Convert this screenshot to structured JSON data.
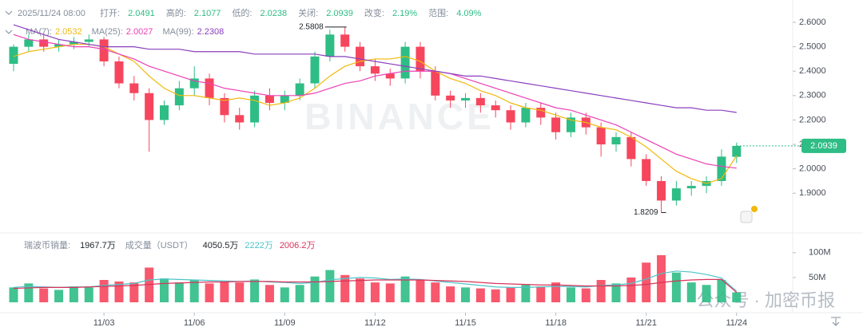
{
  "chart_data": {
    "type": "candlestick",
    "datetime": "2025/11/24 08:00",
    "stats": [
      {
        "label": "打开:",
        "value": "2.0491"
      },
      {
        "label": "高的:",
        "value": "2.1077"
      },
      {
        "label": "低的:",
        "value": "2.0238"
      },
      {
        "label": "关闭:",
        "value": "2.0939"
      },
      {
        "label": "改变:",
        "value": "2.19%"
      },
      {
        "label": "范围:",
        "value": "4.09%"
      }
    ],
    "up_color": "#2ebd85",
    "down_color": "#f6465d",
    "categories": [
      null,
      null,
      null,
      null,
      null,
      null,
      "11/03",
      null,
      null,
      null,
      null,
      null,
      "11/06",
      null,
      null,
      null,
      null,
      null,
      "11/09",
      null,
      null,
      null,
      null,
      null,
      "11/12",
      null,
      null,
      null,
      null,
      null,
      "11/15",
      null,
      null,
      null,
      null,
      null,
      "11/18",
      null,
      null,
      null,
      null,
      null,
      "11/21",
      null,
      null,
      null,
      null,
      null,
      "11/24"
    ],
    "open": [
      2.43,
      2.5,
      2.53,
      2.5,
      2.51,
      2.52,
      2.53,
      2.44,
      2.35,
      2.31,
      2.2,
      2.26,
      2.33,
      2.37,
      2.29,
      2.22,
      2.19,
      2.3,
      2.27,
      2.3,
      2.35,
      2.46,
      2.55,
      2.5,
      2.42,
      2.39,
      2.37,
      2.5,
      2.4,
      2.3,
      2.28,
      2.29,
      2.26,
      2.24,
      2.19,
      2.25,
      2.21,
      2.15,
      2.21,
      2.17,
      2.1,
      2.13,
      2.04,
      1.95,
      1.87,
      1.92,
      1.93,
      1.95,
      2.0491
    ],
    "high": [
      2.51,
      2.55,
      2.55,
      2.53,
      2.54,
      2.55,
      2.54,
      2.46,
      2.38,
      2.33,
      2.28,
      2.36,
      2.42,
      2.39,
      2.31,
      2.25,
      2.32,
      2.33,
      2.32,
      2.37,
      2.48,
      2.57,
      2.5808,
      2.52,
      2.45,
      2.41,
      2.52,
      2.52,
      2.42,
      2.32,
      2.31,
      2.31,
      2.28,
      2.26,
      2.27,
      2.27,
      2.23,
      2.23,
      2.23,
      2.19,
      2.15,
      2.15,
      2.06,
      1.97,
      1.95,
      1.95,
      1.97,
      2.08,
      2.1077
    ],
    "low": [
      2.4,
      2.48,
      2.48,
      2.48,
      2.49,
      2.5,
      2.42,
      2.33,
      2.28,
      2.07,
      2.18,
      2.24,
      2.3,
      2.26,
      2.19,
      2.16,
      2.17,
      2.24,
      2.24,
      2.28,
      2.33,
      2.44,
      2.48,
      2.4,
      2.36,
      2.34,
      2.35,
      2.37,
      2.28,
      2.25,
      2.25,
      2.23,
      2.21,
      2.16,
      2.17,
      2.18,
      2.12,
      2.13,
      2.14,
      2.05,
      2.07,
      2.01,
      1.93,
      1.8209,
      1.85,
      1.89,
      1.9,
      1.93,
      2.0238
    ],
    "close": [
      2.5,
      2.53,
      2.5,
      2.51,
      2.52,
      2.53,
      2.44,
      2.35,
      2.31,
      2.2,
      2.26,
      2.33,
      2.37,
      2.29,
      2.22,
      2.19,
      2.3,
      2.27,
      2.3,
      2.35,
      2.46,
      2.55,
      2.5,
      2.42,
      2.39,
      2.37,
      2.5,
      2.4,
      2.3,
      2.28,
      2.29,
      2.26,
      2.24,
      2.19,
      2.25,
      2.21,
      2.15,
      2.21,
      2.17,
      2.1,
      2.13,
      2.04,
      1.95,
      1.87,
      1.92,
      1.93,
      1.95,
      2.05,
      2.0939
    ],
    "ylim": [
      1.744,
      2.6915
    ],
    "yticks": [
      {
        "value": 2.6,
        "label": "2.6000"
      },
      {
        "value": 2.5,
        "label": "2.5000"
      },
      {
        "value": 2.4,
        "label": "2.4000"
      },
      {
        "value": 2.3,
        "label": "2.3000"
      },
      {
        "value": 2.2,
        "label": "2.2000"
      },
      {
        "value": 2.1,
        "label": "2.1000"
      },
      {
        "value": 2.0,
        "label": "2.0000"
      },
      {
        "value": 1.9,
        "label": "1.9000"
      }
    ],
    "series": [
      {
        "name": "MA(7):",
        "color": "#f0b90b",
        "values": [
          2.46,
          2.48,
          2.49,
          2.5,
          2.51,
          2.51,
          2.5,
          2.47,
          2.44,
          2.38,
          2.33,
          2.3,
          2.3,
          2.29,
          2.28,
          2.29,
          2.28,
          2.26,
          2.27,
          2.29,
          2.33,
          2.38,
          2.42,
          2.44,
          2.45,
          2.45,
          2.46,
          2.44,
          2.4,
          2.37,
          2.35,
          2.32,
          2.3,
          2.27,
          2.25,
          2.24,
          2.22,
          2.2,
          2.19,
          2.17,
          2.16,
          2.13,
          2.09,
          2.04,
          1.99,
          1.96,
          1.94,
          1.96,
          2.0532
        ]
      },
      {
        "name": "MA(25):",
        "color": "#eb40b5",
        "values": [
          2.55,
          2.53,
          2.52,
          2.51,
          2.5,
          2.5,
          2.49,
          2.47,
          2.45,
          2.42,
          2.4,
          2.38,
          2.36,
          2.35,
          2.33,
          2.32,
          2.31,
          2.3,
          2.3,
          2.3,
          2.31,
          2.33,
          2.35,
          2.36,
          2.38,
          2.39,
          2.4,
          2.4,
          2.4,
          2.39,
          2.37,
          2.35,
          2.33,
          2.31,
          2.29,
          2.27,
          2.25,
          2.24,
          2.22,
          2.2,
          2.18,
          2.15,
          2.12,
          2.09,
          2.06,
          2.04,
          2.02,
          2.01,
          2.0027
        ]
      },
      {
        "name": "MA(99):",
        "color": "#8a3fbd",
        "values": [
          2.59,
          2.57,
          2.55,
          2.53,
          2.52,
          2.51,
          2.5,
          2.5,
          2.5,
          2.49,
          2.49,
          2.49,
          2.48,
          2.48,
          2.48,
          2.48,
          2.47,
          2.47,
          2.47,
          2.47,
          2.47,
          2.46,
          2.46,
          2.45,
          2.44,
          2.43,
          2.42,
          2.41,
          2.4,
          2.39,
          2.38,
          2.38,
          2.37,
          2.36,
          2.35,
          2.34,
          2.33,
          2.32,
          2.31,
          2.3,
          2.29,
          2.28,
          2.27,
          2.26,
          2.25,
          2.25,
          2.24,
          2.24,
          2.2308
        ]
      }
    ],
    "volume": {
      "title": "瑞波币销量:",
      "base_value": "1967.7万",
      "quote_title": "成交量（USDT）",
      "quote_value": "4050.5万",
      "values": [
        30,
        38,
        28,
        25,
        32,
        30,
        45,
        42,
        40,
        70,
        48,
        40,
        45,
        38,
        42,
        40,
        46,
        35,
        30,
        35,
        52,
        65,
        55,
        48,
        40,
        38,
        52,
        45,
        40,
        32,
        30,
        28,
        26,
        30,
        35,
        32,
        40,
        30,
        28,
        45,
        38,
        50,
        80,
        95,
        60,
        40,
        35,
        45,
        20
      ],
      "ylim": [
        0,
        127
      ],
      "yticks": [
        {
          "value": 100,
          "label": "100M"
        },
        {
          "value": 50,
          "label": "50M"
        }
      ],
      "series": [
        {
          "name": "2222万",
          "color": "#4dc4c9",
          "values": [
            30,
            32,
            31,
            30,
            31,
            31,
            34,
            36,
            38,
            45,
            47,
            46,
            45,
            44,
            43,
            42,
            43,
            41,
            40,
            38,
            40,
            45,
            48,
            50,
            49,
            46,
            47,
            46,
            43,
            40,
            37,
            34,
            31,
            30,
            30,
            31,
            32,
            32,
            31,
            34,
            35,
            38,
            47,
            58,
            63,
            61,
            56,
            49,
            22.22
          ]
        },
        {
          "name": "2006.2万",
          "color": "#d8335a",
          "values": [
            28,
            29,
            30,
            30,
            30,
            31,
            32,
            33,
            34,
            36,
            38,
            39,
            40,
            41,
            41,
            42,
            42,
            42,
            41,
            41,
            41,
            42,
            43,
            44,
            45,
            45,
            45,
            45,
            44,
            43,
            42,
            40,
            38,
            37,
            36,
            35,
            35,
            34,
            33,
            33,
            33,
            34,
            36,
            40,
            43,
            45,
            46,
            46,
            20.062
          ]
        }
      ]
    },
    "watermark": "BINANCE",
    "footer_watermark": "公众号 · 加密币报"
  }
}
